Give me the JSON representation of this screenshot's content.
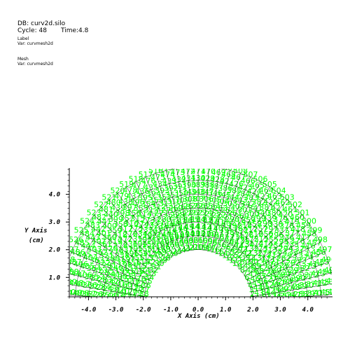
{
  "header": {
    "db": "DB: curv2d.silo",
    "cycle": "Cycle: 48",
    "time": "Time:4.8"
  },
  "plots": [
    {
      "title": "Label",
      "var": "Var: curvmesh2d"
    },
    {
      "title": "Mesh",
      "var": "Var: curvmesh2d"
    }
  ],
  "chart_data": {
    "type": "scatter",
    "title": "",
    "xlabel": "X Axis",
    "xunits": "(cm)",
    "ylabel": "Y Axis",
    "yunits": "(cm)",
    "xlim": [
      -4.7,
      4.9
    ],
    "ylim": [
      0.3,
      4.95
    ],
    "xticks": [
      "-4.0",
      "-3.0",
      "-2.0",
      "-1.0",
      "0.0",
      "1.0",
      "2.0",
      "3.0",
      "4.0"
    ],
    "yticks": [
      "1.0",
      "2.0",
      "3.0",
      "4.0"
    ],
    "xtick_values": [
      -4,
      -3,
      -2,
      -1,
      0,
      1,
      2,
      3,
      4
    ],
    "ytick_values": [
      1,
      2,
      3,
      4
    ],
    "mesh": {
      "inner_radius": 2.0,
      "outer_radius": 5.0,
      "angle_start_deg": 0,
      "angle_end_deg": 180,
      "center": [
        0,
        0
      ]
    },
    "label_color": "#00ff00",
    "mesh_color": "#000000"
  }
}
